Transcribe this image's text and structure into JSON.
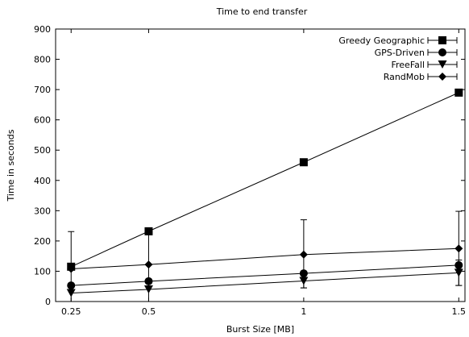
{
  "chart_data": {
    "type": "line",
    "title": "Time to end transfer",
    "xlabel": "Burst Size [MB]",
    "ylabel": "Time in seconds",
    "x": [
      0.25,
      0.5,
      1,
      1.5
    ],
    "x_tick_labels": [
      "0.25",
      "0.5",
      "1",
      "1.5"
    ],
    "xlim": [
      0.2,
      1.52
    ],
    "ylim": [
      0,
      900
    ],
    "y_ticks": [
      0,
      100,
      200,
      300,
      400,
      500,
      600,
      700,
      800,
      900
    ],
    "grid": false,
    "legend_position": "top-right",
    "series": [
      {
        "name": "Greedy Geographic",
        "marker": "square",
        "values": [
          115,
          232,
          460,
          690
        ],
        "error_low": [
          115,
          232,
          460,
          690
        ],
        "error_high": [
          115,
          232,
          460,
          690
        ]
      },
      {
        "name": "GPS-Driven",
        "marker": "circle",
        "values": [
          53,
          67,
          93,
          120
        ],
        "error_low": [
          53,
          67,
          93,
          120
        ],
        "error_high": [
          53,
          67,
          93,
          120
        ]
      },
      {
        "name": "FreeFall",
        "marker": "triangle-down",
        "values": [
          28,
          40,
          68,
          95
        ],
        "error_low": [
          28,
          40,
          45,
          53
        ],
        "error_high": [
          28,
          40,
          90,
          137
        ]
      },
      {
        "name": "RandMob",
        "marker": "diamond",
        "values": [
          108,
          122,
          155,
          175
        ],
        "error_low": [
          0,
          0,
          45,
          53
        ],
        "error_high": [
          231,
          231,
          270,
          298
        ]
      }
    ]
  }
}
